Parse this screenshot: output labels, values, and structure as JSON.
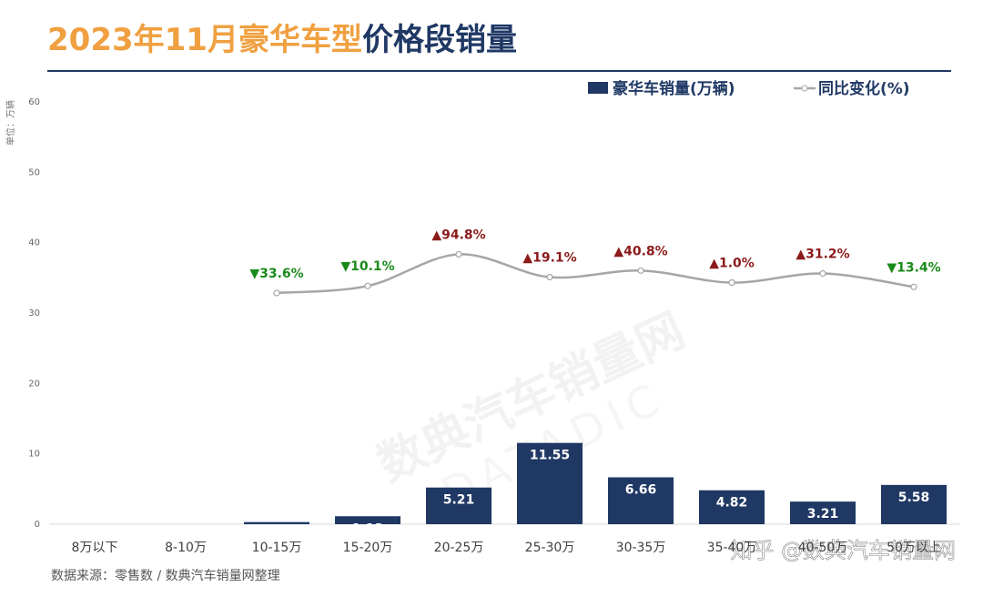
{
  "chart_data": {
    "type": "bar",
    "title": {
      "highlight": "2023年11月豪华车型",
      "rest": "价格段销量"
    },
    "y_axis_label": "单位：万辆",
    "categories": [
      "8万以下",
      "8-10万",
      "10-15万",
      "15-20万",
      "20-25万",
      "25-30万",
      "30-35万",
      "35-40万",
      "40-50万",
      "50万以上"
    ],
    "series": [
      {
        "name": "豪华车销量(万辆)",
        "type": "bar",
        "color": "#1f3864",
        "values": [
          null,
          null,
          0.3,
          1.13,
          5.21,
          11.55,
          6.66,
          4.82,
          3.21,
          5.58
        ]
      },
      {
        "name": "同比变化(%)",
        "type": "line",
        "axis": "y2",
        "color": "#a6a6a6",
        "values": [
          null,
          null,
          -33.6,
          -10.1,
          94.8,
          19.1,
          40.8,
          1.0,
          31.2,
          -13.4
        ],
        "value_labels": [
          null,
          null,
          "▼33.6%",
          "▼10.1%",
          "▲94.8%",
          "▲19.1%",
          "▲40.8%",
          "▲1.0%",
          "▲31.2%",
          "▼13.4%"
        ],
        "up_color": "#8b1a1a",
        "down_color": "#1a8a1a"
      }
    ],
    "ylim": [
      0,
      60
    ],
    "yticks": [
      0,
      10,
      20,
      30,
      40,
      50,
      60
    ],
    "y2lim": [
      -800,
      600
    ],
    "source": "数据来源：零售数  /  数典汽车销量网整理",
    "watermark": "知乎 @数典汽车销量网",
    "background_watermark": "数典汽车销量网",
    "background_watermark_sub": "DATADIC"
  }
}
